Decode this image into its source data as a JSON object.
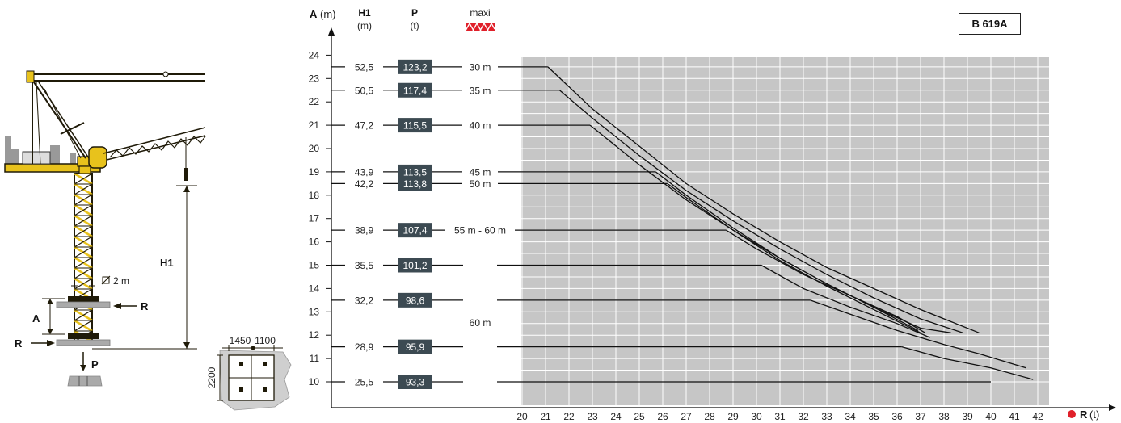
{
  "model": "B 619A",
  "headers": {
    "a_bold": "A",
    "a_unit": "(m)",
    "h1": "H1",
    "h1_unit": "(m)",
    "p": "P",
    "p_unit": "(t)",
    "maxi": "maxi"
  },
  "r_axis": {
    "bold": "R",
    "unit": "(t)"
  },
  "diagram_labels": {
    "h1": "H1",
    "a": "A",
    "r_right": "R",
    "r_left": "R",
    "p": "P",
    "width": "2 m",
    "foot_w1": "1450",
    "foot_w2": "1100",
    "foot_h": "2200"
  },
  "chart_data": {
    "type": "line",
    "xlabel": "R (t)",
    "ylabel": "A (m)",
    "xlim": [
      20,
      42
    ],
    "ylim": [
      10,
      24
    ],
    "x_ticks": [
      20,
      21,
      22,
      23,
      24,
      25,
      26,
      27,
      28,
      29,
      30,
      31,
      32,
      33,
      34,
      35,
      36,
      37,
      38,
      39,
      40,
      41,
      42
    ],
    "y_ticks": [
      10,
      11,
      12,
      13,
      14,
      15,
      16,
      17,
      18,
      19,
      20,
      21,
      22,
      23,
      24
    ],
    "grid": true,
    "rows": [
      {
        "h1": "52,5",
        "p": "123,2",
        "maxi": "30 m",
        "a": 23.5
      },
      {
        "h1": "50,5",
        "p": "117,4",
        "maxi": "35 m",
        "a": 22.5
      },
      {
        "h1": "47,2",
        "p": "115,5",
        "maxi": "40 m",
        "a": 21
      },
      {
        "h1": "43,9",
        "p": "113,5",
        "maxi": "45 m",
        "a": 19
      },
      {
        "h1": "42,2",
        "p": "113,8",
        "maxi": "50 m",
        "a": 18.5
      },
      {
        "h1": "38,9",
        "p": "107,4",
        "maxi": "55 m - 60 m",
        "a": 16.5
      },
      {
        "h1": "35,5",
        "p": "101,2",
        "maxi": "",
        "a": 15
      },
      {
        "h1": "32,2",
        "p": "98,6",
        "maxi": "",
        "a": 13.5
      },
      {
        "h1": "28,9",
        "p": "95,9",
        "maxi": "",
        "a": 11.5
      },
      {
        "h1": "25,5",
        "p": "93,3",
        "maxi": "",
        "a": 10
      }
    ],
    "merged_maxi_label": "60 m",
    "series": [
      {
        "points": [
          [
            21.1,
            23.5
          ],
          [
            23,
            21.7
          ],
          [
            25,
            20.1
          ],
          [
            27,
            18.5
          ],
          [
            29,
            17.2
          ],
          [
            31,
            16.0
          ],
          [
            33,
            14.9
          ],
          [
            35,
            14.0
          ],
          [
            37,
            13.1
          ],
          [
            39.5,
            12.1
          ]
        ]
      },
      {
        "points": [
          [
            21.6,
            22.5
          ],
          [
            23,
            21.3
          ],
          [
            25,
            19.7
          ],
          [
            27,
            18.2
          ],
          [
            29,
            16.9
          ],
          [
            31,
            15.7
          ],
          [
            33,
            14.6
          ],
          [
            35,
            13.6
          ],
          [
            37,
            12.7
          ],
          [
            38.8,
            12.1
          ]
        ]
      },
      {
        "points": [
          [
            22.9,
            21.0
          ],
          [
            25,
            19.3
          ],
          [
            27,
            17.8
          ],
          [
            29,
            16.5
          ],
          [
            31,
            15.3
          ],
          [
            33,
            14.2
          ],
          [
            35,
            13.2
          ],
          [
            37,
            12.3
          ],
          [
            38.3,
            12.1
          ]
        ]
      },
      {
        "points": [
          [
            25.7,
            19.0
          ],
          [
            27,
            18.0
          ],
          [
            29,
            16.6
          ],
          [
            31,
            15.3
          ],
          [
            33,
            14.2
          ],
          [
            35,
            13.2
          ],
          [
            36.9,
            12.2
          ]
        ]
      },
      {
        "points": [
          [
            26.2,
            18.5
          ],
          [
            27,
            17.9
          ],
          [
            29,
            16.5
          ],
          [
            31,
            15.2
          ],
          [
            33,
            14.1
          ],
          [
            35,
            13.1
          ],
          [
            37,
            12.1
          ]
        ]
      },
      {
        "points": [
          [
            28.7,
            16.5
          ],
          [
            30,
            15.7
          ],
          [
            32,
            14.6
          ],
          [
            34,
            13.7
          ],
          [
            36,
            12.8
          ],
          [
            37.2,
            12.1
          ]
        ]
      },
      {
        "points": [
          [
            30.2,
            15.0
          ],
          [
            32,
            14.0
          ],
          [
            34,
            13.2
          ],
          [
            36,
            12.5
          ],
          [
            37.4,
            11.9
          ]
        ]
      },
      {
        "points": [
          [
            32.3,
            13.5
          ],
          [
            34,
            12.9
          ],
          [
            36,
            12.2
          ],
          [
            38,
            11.6
          ],
          [
            39.5,
            11.2
          ],
          [
            41.5,
            10.6
          ]
        ]
      },
      {
        "points": [
          [
            36.2,
            11.5
          ],
          [
            38,
            11.0
          ],
          [
            40,
            10.6
          ],
          [
            41.8,
            10.1
          ]
        ]
      },
      {
        "points": [
          [
            40.0,
            10.0
          ]
        ]
      }
    ]
  }
}
